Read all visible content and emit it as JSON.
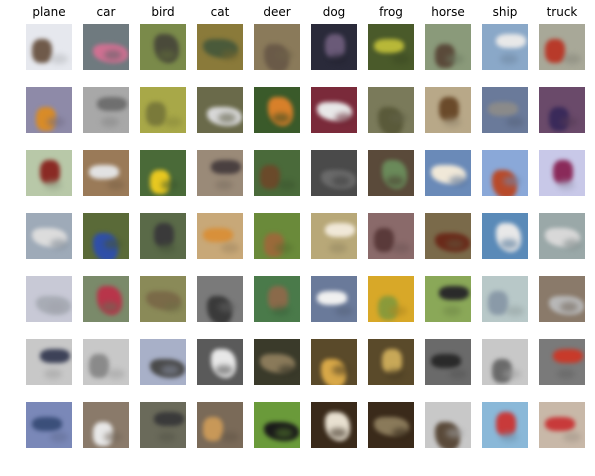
{
  "figure": {
    "classes": [
      {
        "label": "plane",
        "thumbs": [
          {
            "bg": "#e6e8ee",
            "fg": "#6f5a4a",
            "subject": "plane-icon"
          },
          {
            "bg": "#8e8aa8",
            "fg": "#d88b28",
            "subject": "plane-icon"
          },
          {
            "bg": "#b8c8a8",
            "fg": "#8a2a24",
            "subject": "plane-icon"
          },
          {
            "bg": "#9eaab8",
            "fg": "#dcdcdc",
            "subject": "plane-icon"
          },
          {
            "bg": "#c8c9d6",
            "fg": "#a8acb5",
            "subject": "plane-icon"
          },
          {
            "bg": "#c8c8c8",
            "fg": "#3d4258",
            "subject": "plane-icon"
          },
          {
            "bg": "#7a88b8",
            "fg": "#3b4f7a",
            "subject": "plane-icon"
          }
        ]
      },
      {
        "label": "car",
        "thumbs": [
          {
            "bg": "#6f7a7f",
            "fg": "#d07092",
            "subject": "car-icon"
          },
          {
            "bg": "#a8a8a8",
            "fg": "#6f6f6f",
            "subject": "car-icon"
          },
          {
            "bg": "#9a7a58",
            "fg": "#e2e2e2",
            "subject": "car-icon"
          },
          {
            "bg": "#5a6a38",
            "fg": "#2f4fa8",
            "subject": "car-icon"
          },
          {
            "bg": "#7a8a6a",
            "fg": "#b8354a",
            "subject": "car-icon"
          },
          {
            "bg": "#c8c8c8",
            "fg": "#8a8a8a",
            "subject": "car-icon"
          },
          {
            "bg": "#8a7a6a",
            "fg": "#e8e8e8",
            "subject": "car-icon"
          }
        ]
      },
      {
        "label": "bird",
        "thumbs": [
          {
            "bg": "#7a8a4a",
            "fg": "#4a4a3a",
            "subject": "bird-icon"
          },
          {
            "bg": "#a8a848",
            "fg": "#7a7a3a",
            "subject": "bird-icon"
          },
          {
            "bg": "#4a6a38",
            "fg": "#e8c820",
            "subject": "bird-icon"
          },
          {
            "bg": "#5a6a48",
            "fg": "#3a3a3a",
            "subject": "bird-icon"
          },
          {
            "bg": "#8a8a58",
            "fg": "#7a6a48",
            "subject": "bird-icon"
          },
          {
            "bg": "#a8b0c8",
            "fg": "#4a4a4a",
            "subject": "bird-icon"
          },
          {
            "bg": "#6a6a5a",
            "fg": "#3a3a3a",
            "subject": "bird-icon"
          }
        ]
      },
      {
        "label": "cat",
        "thumbs": [
          {
            "bg": "#8a7a3a",
            "fg": "#4a5a3a",
            "subject": "cat-icon"
          },
          {
            "bg": "#6a6a4a",
            "fg": "#d8d8d8",
            "subject": "cat-icon"
          },
          {
            "bg": "#9a8a78",
            "fg": "#4a4040",
            "subject": "cat-icon"
          },
          {
            "bg": "#c8a878",
            "fg": "#d8903a",
            "subject": "cat-icon"
          },
          {
            "bg": "#7a7a7a",
            "fg": "#3a3a3a",
            "subject": "cat-icon"
          },
          {
            "bg": "#5a5a5a",
            "fg": "#e8e8e8",
            "subject": "cat-icon"
          },
          {
            "bg": "#7a6a58",
            "fg": "#c89858",
            "subject": "cat-icon"
          }
        ]
      },
      {
        "label": "deer",
        "thumbs": [
          {
            "bg": "#8a7a5a",
            "fg": "#6a5a48",
            "subject": "deer-icon"
          },
          {
            "bg": "#3a5a2a",
            "fg": "#d8802a",
            "subject": "deer-icon"
          },
          {
            "bg": "#4a6a3a",
            "fg": "#6a4a2a",
            "subject": "deer-icon"
          },
          {
            "bg": "#6a8a3a",
            "fg": "#9a6a3a",
            "subject": "deer-icon"
          },
          {
            "bg": "#4a7a4a",
            "fg": "#8a6a4a",
            "subject": "deer-icon"
          },
          {
            "bg": "#3a3a2a",
            "fg": "#8a7a5a",
            "subject": "deer-icon"
          },
          {
            "bg": "#6a9a3a",
            "fg": "#1a1a1a",
            "subject": "deer-icon"
          }
        ]
      },
      {
        "label": "dog",
        "thumbs": [
          {
            "bg": "#2a2a3a",
            "fg": "#6a5a78",
            "subject": "dog-icon"
          },
          {
            "bg": "#7a2a3a",
            "fg": "#e8e8e8",
            "subject": "dog-icon"
          },
          {
            "bg": "#4a4a4a",
            "fg": "#6a6a6a",
            "subject": "dog-icon"
          },
          {
            "bg": "#b8a878",
            "fg": "#f0e8d8",
            "subject": "dog-icon"
          },
          {
            "bg": "#6a7a9a",
            "fg": "#f0f0f0",
            "subject": "dog-icon"
          },
          {
            "bg": "#5a4a2a",
            "fg": "#d8a848",
            "subject": "dog-icon"
          },
          {
            "bg": "#3a2a1a",
            "fg": "#e8e0d0",
            "subject": "dog-icon"
          }
        ]
      },
      {
        "label": "frog",
        "thumbs": [
          {
            "bg": "#4a5a2a",
            "fg": "#b8b838",
            "subject": "frog-icon"
          },
          {
            "bg": "#7a7a5a",
            "fg": "#5a5a3a",
            "subject": "frog-icon"
          },
          {
            "bg": "#5a4a3a",
            "fg": "#6a8a5a",
            "subject": "frog-icon"
          },
          {
            "bg": "#8a6a6a",
            "fg": "#5a3a3a",
            "subject": "frog-icon"
          },
          {
            "bg": "#d8a828",
            "fg": "#8a9a3a",
            "subject": "frog-icon"
          },
          {
            "bg": "#5a4a2a",
            "fg": "#c8a858",
            "subject": "frog-icon"
          },
          {
            "bg": "#3a2a1a",
            "fg": "#8a7a5a",
            "subject": "frog-icon"
          }
        ]
      },
      {
        "label": "horse",
        "thumbs": [
          {
            "bg": "#8a9a7a",
            "fg": "#5a4a3a",
            "subject": "horse-icon"
          },
          {
            "bg": "#b8a888",
            "fg": "#6a4a2a",
            "subject": "horse-icon"
          },
          {
            "bg": "#6a8ab8",
            "fg": "#f0e8d8",
            "subject": "horse-icon"
          },
          {
            "bg": "#7a6a4a",
            "fg": "#6a2a1a",
            "subject": "horse-icon"
          },
          {
            "bg": "#8aa858",
            "fg": "#2a2a2a",
            "subject": "horse-icon"
          },
          {
            "bg": "#6a6a6a",
            "fg": "#2a2a2a",
            "subject": "horse-icon"
          },
          {
            "bg": "#c8c8c8",
            "fg": "#5a4a3a",
            "subject": "horse-icon"
          }
        ]
      },
      {
        "label": "ship",
        "thumbs": [
          {
            "bg": "#8aa8c8",
            "fg": "#e8e8e8",
            "subject": "ship-icon"
          },
          {
            "bg": "#6a7a9a",
            "fg": "#8a8a8a",
            "subject": "ship-icon"
          },
          {
            "bg": "#8aa8d8",
            "fg": "#b84a2a",
            "subject": "ship-icon"
          },
          {
            "bg": "#5a8ab8",
            "fg": "#e8e8e8",
            "subject": "ship-icon"
          },
          {
            "bg": "#b8c8c8",
            "fg": "#8a9aa8",
            "subject": "ship-icon"
          },
          {
            "bg": "#c8c8c8",
            "fg": "#6a6a6a",
            "subject": "ship-icon"
          },
          {
            "bg": "#8ab8d8",
            "fg": "#c83a3a",
            "subject": "ship-icon"
          }
        ]
      },
      {
        "label": "truck",
        "thumbs": [
          {
            "bg": "#a8a898",
            "fg": "#b83a2a",
            "subject": "truck-icon"
          },
          {
            "bg": "#6a4a6a",
            "fg": "#3a2a5a",
            "subject": "truck-icon"
          },
          {
            "bg": "#c8c8e8",
            "fg": "#8a2a5a",
            "subject": "truck-icon"
          },
          {
            "bg": "#9aa8a8",
            "fg": "#d8d8d8",
            "subject": "truck-icon"
          },
          {
            "bg": "#8a7a6a",
            "fg": "#b8b8b8",
            "subject": "truck-icon"
          },
          {
            "bg": "#7a7a7a",
            "fg": "#c83a2a",
            "subject": "truck-icon"
          },
          {
            "bg": "#c8b8a8",
            "fg": "#c83a3a",
            "subject": "truck-icon"
          }
        ]
      }
    ]
  }
}
